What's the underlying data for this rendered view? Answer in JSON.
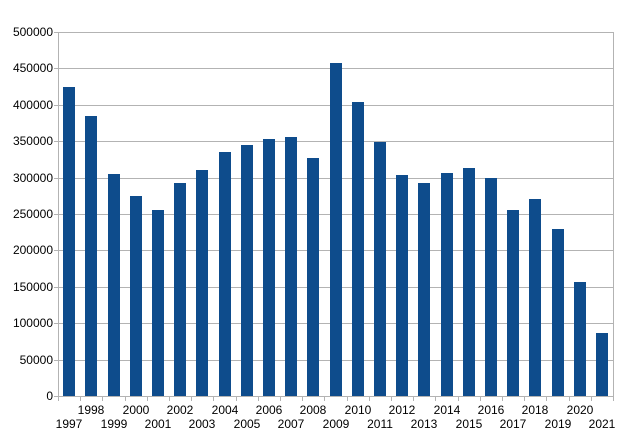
{
  "chart_data": {
    "type": "bar",
    "title": "",
    "xlabel": "",
    "ylabel": "",
    "legend": "none",
    "grid": "horizontal",
    "categories": [
      "1997",
      "1998",
      "1999",
      "2000",
      "2001",
      "2002",
      "2003",
      "2004",
      "2005",
      "2006",
      "2007",
      "2008",
      "2009",
      "2010",
      "2011",
      "2012",
      "2013",
      "2014",
      "2015",
      "2016",
      "2017",
      "2018",
      "2019",
      "2020",
      "2021"
    ],
    "values": [
      424000,
      384000,
      305000,
      275000,
      256000,
      293000,
      310000,
      335000,
      345000,
      353000,
      356000,
      327000,
      458000,
      404000,
      349000,
      304000,
      292000,
      307000,
      313000,
      299000,
      255000,
      270000,
      229000,
      156000,
      86000
    ],
    "ylim": [
      0,
      500000
    ],
    "ytick_step": 50000,
    "ytick_labels": [
      "0",
      "50000",
      "100000",
      "150000",
      "200000",
      "250000",
      "300000",
      "350000",
      "400000",
      "450000",
      "500000"
    ],
    "x_label_layout": "staggered-two-rows (even years upper row, odd years lower row)"
  },
  "colors": {
    "bar": "#0e4c8c",
    "grid": "#b3b3b3",
    "background": "#ffffff",
    "text": "#000000"
  }
}
